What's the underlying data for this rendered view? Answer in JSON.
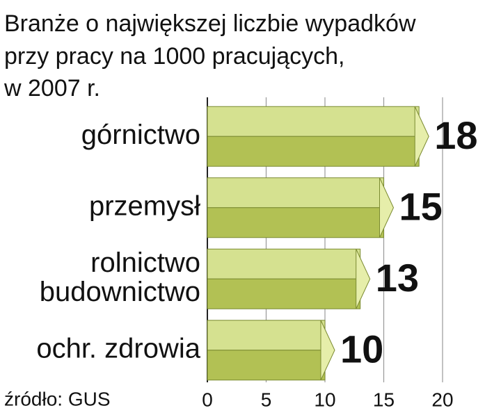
{
  "chart_data": {
    "type": "bar",
    "orientation": "horizontal",
    "title": [
      "Branże o największej liczbie wypadków",
      "przy pracy na 1000 pracujących,",
      "w 2007 r."
    ],
    "categories": [
      "górnictwo",
      "przemysł",
      [
        "rolnictwo",
        "budownictwo"
      ],
      "ochr. zdrowia"
    ],
    "values": [
      18,
      15,
      13,
      10
    ],
    "xlim": [
      0,
      20
    ],
    "xticks": [
      0,
      5,
      10,
      15,
      20
    ],
    "grid": true,
    "colors": {
      "top": "#d5e190",
      "bottom": "#b2c154",
      "tip": "#e6eeaa"
    },
    "source": "źródło: GUS"
  }
}
